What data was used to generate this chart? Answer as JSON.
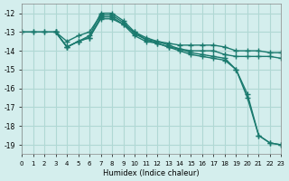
{
  "xlabel": "Humidex (Indice chaleur)",
  "ylabel": "",
  "background_color": "#d4eeed",
  "grid_color": "#b0d8d4",
  "line_color": "#1a7a6e",
  "xlim": [
    0,
    23
  ],
  "ylim": [
    -19.5,
    -11.5
  ],
  "yticks": [
    -19,
    -18,
    -17,
    -16,
    -15,
    -14,
    -13,
    -12
  ],
  "xticks": [
    0,
    1,
    2,
    3,
    4,
    5,
    6,
    7,
    8,
    9,
    10,
    11,
    12,
    13,
    14,
    15,
    16,
    17,
    18,
    19,
    20,
    21,
    22,
    23
  ],
  "line1_x": [
    0,
    1,
    2,
    3,
    4,
    5,
    6,
    7,
    8,
    9,
    10,
    11,
    12,
    13,
    14,
    15,
    16,
    17,
    18,
    19,
    20,
    21,
    22,
    23
  ],
  "line1_y": [
    -13.0,
    -13.0,
    -13.0,
    -13.0,
    -13.5,
    -13.2,
    -13.0,
    -12.1,
    -12.1,
    -12.5,
    -13.1,
    -13.4,
    -13.5,
    -13.6,
    -13.7,
    -13.7,
    -13.7,
    -13.7,
    -13.8,
    -14.0,
    -14.0,
    -14.0,
    -14.1,
    -14.1
  ],
  "line2_x": [
    0,
    1,
    2,
    3,
    4,
    5,
    6,
    7,
    8,
    9,
    10,
    11,
    12,
    13,
    14,
    15,
    16,
    17,
    18,
    19,
    20,
    21,
    22,
    23
  ],
  "line2_y": [
    -13.0,
    -13.0,
    -13.0,
    -13.0,
    -13.8,
    -13.5,
    -13.3,
    -12.2,
    -12.2,
    -12.6,
    -13.2,
    -13.5,
    -13.6,
    -13.8,
    -13.9,
    -14.0,
    -14.0,
    -14.0,
    -14.2,
    -14.3,
    -14.3,
    -14.3,
    -14.3,
    -14.4
  ],
  "line3_x": [
    3,
    4,
    5,
    6,
    7,
    8,
    9,
    10,
    11,
    12,
    13,
    14,
    15,
    16,
    17,
    18,
    19,
    20,
    21,
    22,
    23
  ],
  "line3_y": [
    -13.0,
    -13.8,
    -13.5,
    -13.3,
    -12.3,
    -12.3,
    -12.6,
    -13.0,
    -13.4,
    -13.6,
    -13.8,
    -14.0,
    -14.2,
    -14.3,
    -14.4,
    -14.5,
    -15.0,
    -16.3,
    -18.5,
    -18.9,
    -19.0
  ],
  "line4_x": [
    3,
    4,
    5,
    6,
    7,
    8,
    9,
    10,
    11,
    12,
    13,
    14,
    15,
    16,
    17,
    18,
    19,
    20,
    21,
    22,
    23
  ],
  "line4_y": [
    -13.0,
    -13.8,
    -13.5,
    -13.2,
    -12.0,
    -12.0,
    -12.4,
    -13.0,
    -13.3,
    -13.5,
    -13.7,
    -13.9,
    -14.1,
    -14.2,
    -14.3,
    -14.4,
    -15.0,
    -16.5,
    -18.5,
    -18.9,
    -19.0
  ]
}
